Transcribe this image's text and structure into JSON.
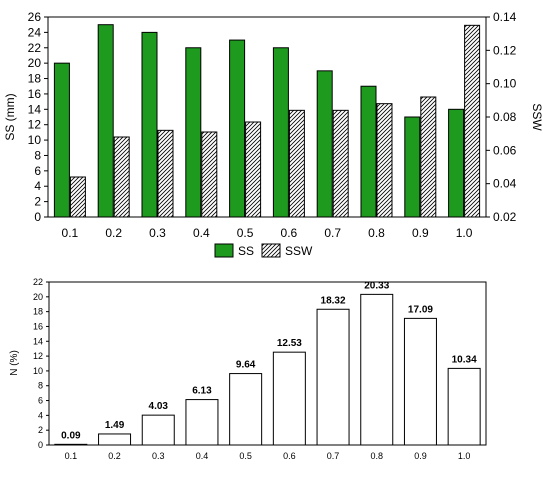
{
  "chart_data": [
    {
      "type": "bar",
      "categories": [
        "0.1",
        "0.2",
        "0.3",
        "0.4",
        "0.5",
        "0.6",
        "0.7",
        "0.8",
        "0.9",
        "1.0"
      ],
      "series": [
        {
          "name": "SS",
          "axis": "left",
          "color": "#1e9b1e",
          "pattern": "solid",
          "values": [
            20,
            25,
            24,
            22,
            23,
            22,
            19,
            17,
            13,
            14
          ]
        },
        {
          "name": "SSW",
          "axis": "right",
          "color": "#ffffff",
          "pattern": "diagonal-hatch",
          "values": [
            0.044,
            0.068,
            0.072,
            0.071,
            0.077,
            0.084,
            0.084,
            0.088,
            0.092,
            0.135
          ]
        }
      ],
      "ylabel": "SS (mm)",
      "ylabel_right": "SSW",
      "ylim": [
        0,
        26
      ],
      "yticks": [
        "0",
        "2",
        "4",
        "6",
        "8",
        "10",
        "12",
        "14",
        "16",
        "18",
        "20",
        "22",
        "24",
        "26"
      ],
      "ylim_right": [
        0.02,
        0.14
      ],
      "yticks_right": [
        "0.02",
        "0.04",
        "0.06",
        "0.08",
        "0.10",
        "0.12",
        "0.14"
      ],
      "legend": [
        "SS",
        "SSW"
      ],
      "legend_position": "bottom",
      "grid": false
    },
    {
      "type": "bar",
      "categories": [
        "0.1",
        "0.2",
        "0.3",
        "0.4",
        "0.5",
        "0.6",
        "0.7",
        "0.8",
        "0.9",
        "1.0"
      ],
      "values": [
        0.09,
        1.49,
        4.03,
        6.13,
        9.64,
        12.53,
        18.32,
        20.33,
        17.09,
        10.34
      ],
      "data_labels": [
        "0.09",
        "1.49",
        "4.03",
        "6.13",
        "9.64",
        "12.53",
        "18.32",
        "20.33",
        "17.09",
        "10.34"
      ],
      "ylabel": "N (%)",
      "ylim": [
        0,
        22
      ],
      "yticks": [
        "0",
        "2",
        "4",
        "6",
        "8",
        "10",
        "12",
        "14",
        "16",
        "18",
        "20",
        "22"
      ],
      "bar_color": "#ffffff",
      "grid": false
    }
  ]
}
